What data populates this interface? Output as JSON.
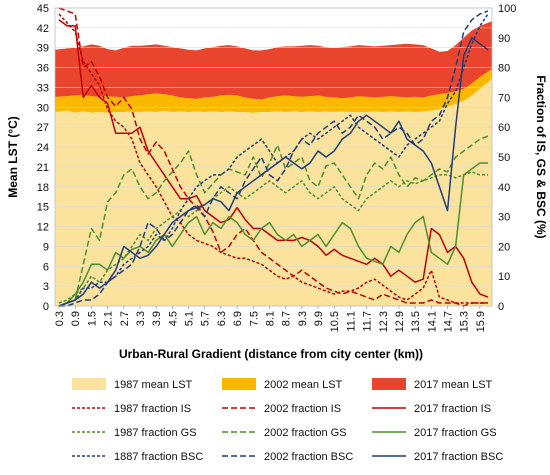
{
  "chart_data": {
    "type": "area",
    "title": "",
    "xlabel": "Urban-Rural Gradient (distance from city center (km))",
    "ylabel_left": "Mean LST (°C)",
    "ylabel_right": "Fraction of IS, GS & BSC (%)",
    "ylim_left": [
      0,
      45
    ],
    "ylim_right": [
      0,
      100
    ],
    "yticks_left": [
      "0",
      "3",
      "6",
      "9",
      "12",
      "15",
      "18",
      "21",
      "24",
      "27",
      "30",
      "33",
      "36",
      "39",
      "42",
      "45"
    ],
    "yticks_right": [
      "0",
      "10",
      "20",
      "30",
      "40",
      "50",
      "60",
      "70",
      "80",
      "90",
      "100"
    ],
    "x": [
      0.3,
      0.6,
      0.9,
      1.2,
      1.5,
      1.8,
      2.1,
      2.4,
      2.7,
      3.0,
      3.3,
      3.6,
      3.9,
      4.2,
      4.5,
      4.8,
      5.1,
      5.4,
      5.7,
      6.0,
      6.3,
      6.6,
      6.9,
      7.2,
      7.5,
      7.8,
      8.1,
      8.4,
      8.7,
      9.0,
      9.3,
      9.6,
      9.9,
      10.2,
      10.5,
      10.8,
      11.1,
      11.4,
      11.7,
      12.0,
      12.3,
      12.6,
      12.9,
      13.2,
      13.5,
      13.8,
      14.1,
      14.4,
      14.7,
      15.0,
      15.3,
      15.6,
      15.9,
      16.2
    ],
    "xtick_labels": [
      "0.3",
      "0.9",
      "1.5",
      "2.1",
      "2.7",
      "3.3",
      "3.9",
      "4.5",
      "5.1",
      "5.7",
      "6.3",
      "6.9",
      "7.5",
      "8.1",
      "8.7",
      "9.3",
      "9.9",
      "10.5",
      "11.1",
      "11.7",
      "12.3",
      "12.9",
      "13.5",
      "14.1",
      "14.7",
      "15.3",
      "15.9"
    ],
    "grid": true,
    "legend_position": "bottom",
    "series": [
      {
        "name": "1987 mean LST",
        "kind": "area",
        "axis": "left",
        "color": "#fbe39e",
        "values": [
          29.3,
          29.5,
          29.2,
          29.4,
          29.2,
          29.3,
          29.2,
          29.3,
          29.3,
          29.4,
          29.3,
          29.4,
          29.3,
          29.5,
          29.3,
          29.4,
          29.3,
          29.4,
          29.3,
          29.4,
          29.3,
          29.4,
          29.3,
          29.3,
          29.2,
          29.3,
          29.3,
          29.4,
          29.3,
          29.4,
          29.3,
          29.4,
          29.3,
          29.4,
          29.3,
          29.4,
          29.3,
          29.3,
          29.3,
          29.4,
          29.3,
          29.4,
          29.3,
          29.4,
          29.3,
          29.4,
          29.5,
          29.8,
          30.1,
          30.5,
          31.0,
          31.8,
          32.8,
          34.3
        ]
      },
      {
        "name": "2002 mean LST",
        "kind": "area",
        "axis": "left",
        "color": "#fbb800",
        "values": [
          31.6,
          31.7,
          31.8,
          31.9,
          31.7,
          31.6,
          31.7,
          31.6,
          31.5,
          31.7,
          31.8,
          32.0,
          32.1,
          32.0,
          31.8,
          31.5,
          31.4,
          31.3,
          31.5,
          31.6,
          31.8,
          31.9,
          31.8,
          31.5,
          31.3,
          31.2,
          31.5,
          31.7,
          31.8,
          31.7,
          31.6,
          31.7,
          31.8,
          31.6,
          31.5,
          31.4,
          31.5,
          31.7,
          31.6,
          31.5,
          31.6,
          31.7,
          31.6,
          31.5,
          31.6,
          31.5,
          31.8,
          32.0,
          32.2,
          32.4,
          32.8,
          33.6,
          34.6,
          35.8
        ]
      },
      {
        "name": "2017 mean LST",
        "kind": "area",
        "axis": "left",
        "color": "#e8442e",
        "values": [
          38.7,
          38.9,
          39.0,
          39.2,
          39.5,
          39.3,
          38.8,
          38.6,
          39.0,
          39.3,
          39.3,
          39.4,
          39.5,
          39.3,
          39.1,
          38.9,
          38.7,
          38.6,
          38.9,
          39.1,
          39.3,
          39.4,
          39.2,
          38.9,
          38.6,
          38.6,
          38.8,
          39.1,
          39.2,
          39.2,
          39.3,
          39.4,
          39.3,
          39.1,
          39.0,
          39.1,
          39.2,
          39.4,
          39.3,
          39.2,
          39.3,
          39.4,
          39.5,
          39.6,
          39.5,
          39.4,
          38.9,
          38.4,
          38.5,
          39.4,
          40.5,
          41.6,
          42.3,
          43.0
        ]
      },
      {
        "name": "1987 fraction IS",
        "kind": "line",
        "dash": "dotted",
        "axis": "right",
        "color": "#c00000",
        "values": [
          98,
          95,
          92,
          82,
          78,
          74,
          66,
          62,
          60,
          56,
          48,
          44,
          40,
          35,
          30,
          28,
          24,
          22,
          21,
          20,
          18,
          17,
          16,
          16,
          15,
          14,
          12,
          10,
          9,
          10,
          8,
          7,
          6,
          5,
          4,
          5,
          5,
          6,
          8,
          9,
          7,
          5,
          3,
          2,
          4,
          6,
          12,
          3,
          2,
          1,
          1,
          1,
          1,
          1
        ]
      },
      {
        "name": "2002 fraction IS",
        "kind": "line",
        "dash": "dashed",
        "axis": "right",
        "color": "#c00000",
        "values": [
          100,
          99,
          98,
          80,
          82,
          77,
          70,
          67,
          70,
          66,
          56,
          51,
          55,
          52,
          46,
          40,
          36,
          33,
          30,
          25,
          18,
          20,
          24,
          26,
          22,
          18,
          16,
          14,
          12,
          10,
          12,
          10,
          8,
          6,
          5,
          4,
          5,
          4,
          3,
          2,
          4,
          3,
          2,
          1,
          1,
          1,
          2,
          1,
          1,
          1,
          0,
          1,
          1,
          1
        ]
      },
      {
        "name": "2017 fraction IS",
        "kind": "line",
        "dash": "solid",
        "axis": "right",
        "color": "#c00000",
        "values": [
          96,
          94,
          94,
          70,
          74,
          70,
          68,
          58,
          58,
          58,
          60,
          52,
          48,
          44,
          40,
          36,
          36,
          37,
          32,
          30,
          28,
          29,
          33,
          29,
          26,
          26,
          24,
          22,
          22,
          22,
          23,
          22,
          20,
          17,
          19,
          17,
          16,
          15,
          14,
          16,
          14,
          10,
          12,
          10,
          8,
          9,
          26,
          24,
          18,
          20,
          16,
          8,
          4,
          3
        ]
      },
      {
        "name": "1987 fraction GS",
        "kind": "line",
        "dash": "dotted",
        "axis": "right",
        "color": "#4e8e2f",
        "values": [
          1,
          2,
          4,
          6,
          10,
          8,
          12,
          14,
          16,
          20,
          24,
          22,
          26,
          28,
          30,
          32,
          30,
          32,
          34,
          36,
          38,
          40,
          38,
          36,
          38,
          40,
          42,
          40,
          38,
          40,
          42,
          38,
          36,
          38,
          40,
          36,
          34,
          32,
          36,
          38,
          40,
          42,
          40,
          42,
          41,
          42,
          43,
          44,
          44,
          43,
          44,
          45,
          44,
          44
        ]
      },
      {
        "name": "2002 fraction GS",
        "kind": "line",
        "dash": "dashed",
        "axis": "right",
        "color": "#4e8e2f",
        "values": [
          0,
          1,
          2,
          14,
          26,
          22,
          35,
          38,
          44,
          46,
          40,
          36,
          38,
          42,
          45,
          48,
          52,
          44,
          38,
          41,
          44,
          46,
          45,
          44,
          50,
          43,
          48,
          54,
          46,
          48,
          50,
          42,
          40,
          47,
          48,
          44,
          40,
          36,
          44,
          48,
          46,
          50,
          44,
          40,
          43,
          42,
          44,
          46,
          45,
          50,
          52,
          54,
          56,
          57
        ]
      },
      {
        "name": "2017 fraction GS",
        "kind": "line",
        "dash": "solid",
        "axis": "right",
        "color": "#4e8e2f",
        "values": [
          0,
          1,
          4,
          8,
          14,
          14,
          12,
          18,
          16,
          19,
          20,
          18,
          22,
          24,
          20,
          24,
          28,
          30,
          24,
          28,
          26,
          30,
          28,
          24,
          22,
          26,
          28,
          24,
          22,
          24,
          20,
          22,
          24,
          20,
          24,
          28,
          26,
          20,
          16,
          15,
          14,
          20,
          18,
          24,
          28,
          30,
          18,
          16,
          14,
          20,
          44,
          46,
          48,
          48
        ]
      },
      {
        "name": "1887 fraction BSC",
        "kind": "line",
        "dash": "dotted",
        "axis": "right",
        "color": "#1f3d7a",
        "values": [
          0,
          1,
          2,
          6,
          6,
          8,
          8,
          10,
          14,
          16,
          18,
          20,
          24,
          22,
          26,
          32,
          36,
          40,
          42,
          44,
          44,
          46,
          50,
          52,
          54,
          56,
          52,
          48,
          50,
          52,
          56,
          58,
          56,
          58,
          60,
          62,
          64,
          60,
          58,
          56,
          54,
          52,
          50,
          54,
          56,
          58,
          60,
          62,
          68,
          72,
          80,
          88,
          94,
          98
        ]
      },
      {
        "name": "2002 fraction BSC",
        "kind": "line",
        "dash": "dashed",
        "axis": "right",
        "color": "#1f3d7a",
        "values": [
          0,
          0,
          1,
          2,
          2,
          4,
          8,
          10,
          12,
          14,
          20,
          28,
          26,
          22,
          24,
          28,
          32,
          34,
          30,
          36,
          40,
          38,
          36,
          42,
          46,
          50,
          44,
          42,
          46,
          52,
          56,
          54,
          58,
          60,
          62,
          58,
          60,
          64,
          62,
          60,
          56,
          58,
          60,
          58,
          54,
          56,
          62,
          64,
          70,
          80,
          92,
          96,
          98,
          99
        ]
      },
      {
        "name": "2017 fraction BSC",
        "kind": "line",
        "dash": "solid",
        "axis": "right",
        "color": "#1f3d7a",
        "values": [
          0,
          1,
          2,
          4,
          8,
          6,
          8,
          12,
          20,
          18,
          16,
          17,
          20,
          24,
          28,
          30,
          32,
          33,
          34,
          36,
          35,
          32,
          38,
          40,
          42,
          44,
          46,
          48,
          50,
          48,
          46,
          48,
          52,
          50,
          52,
          56,
          58,
          62,
          64,
          62,
          60,
          58,
          62,
          56,
          54,
          52,
          48,
          40,
          32,
          60,
          84,
          90,
          88,
          86
        ]
      }
    ]
  }
}
